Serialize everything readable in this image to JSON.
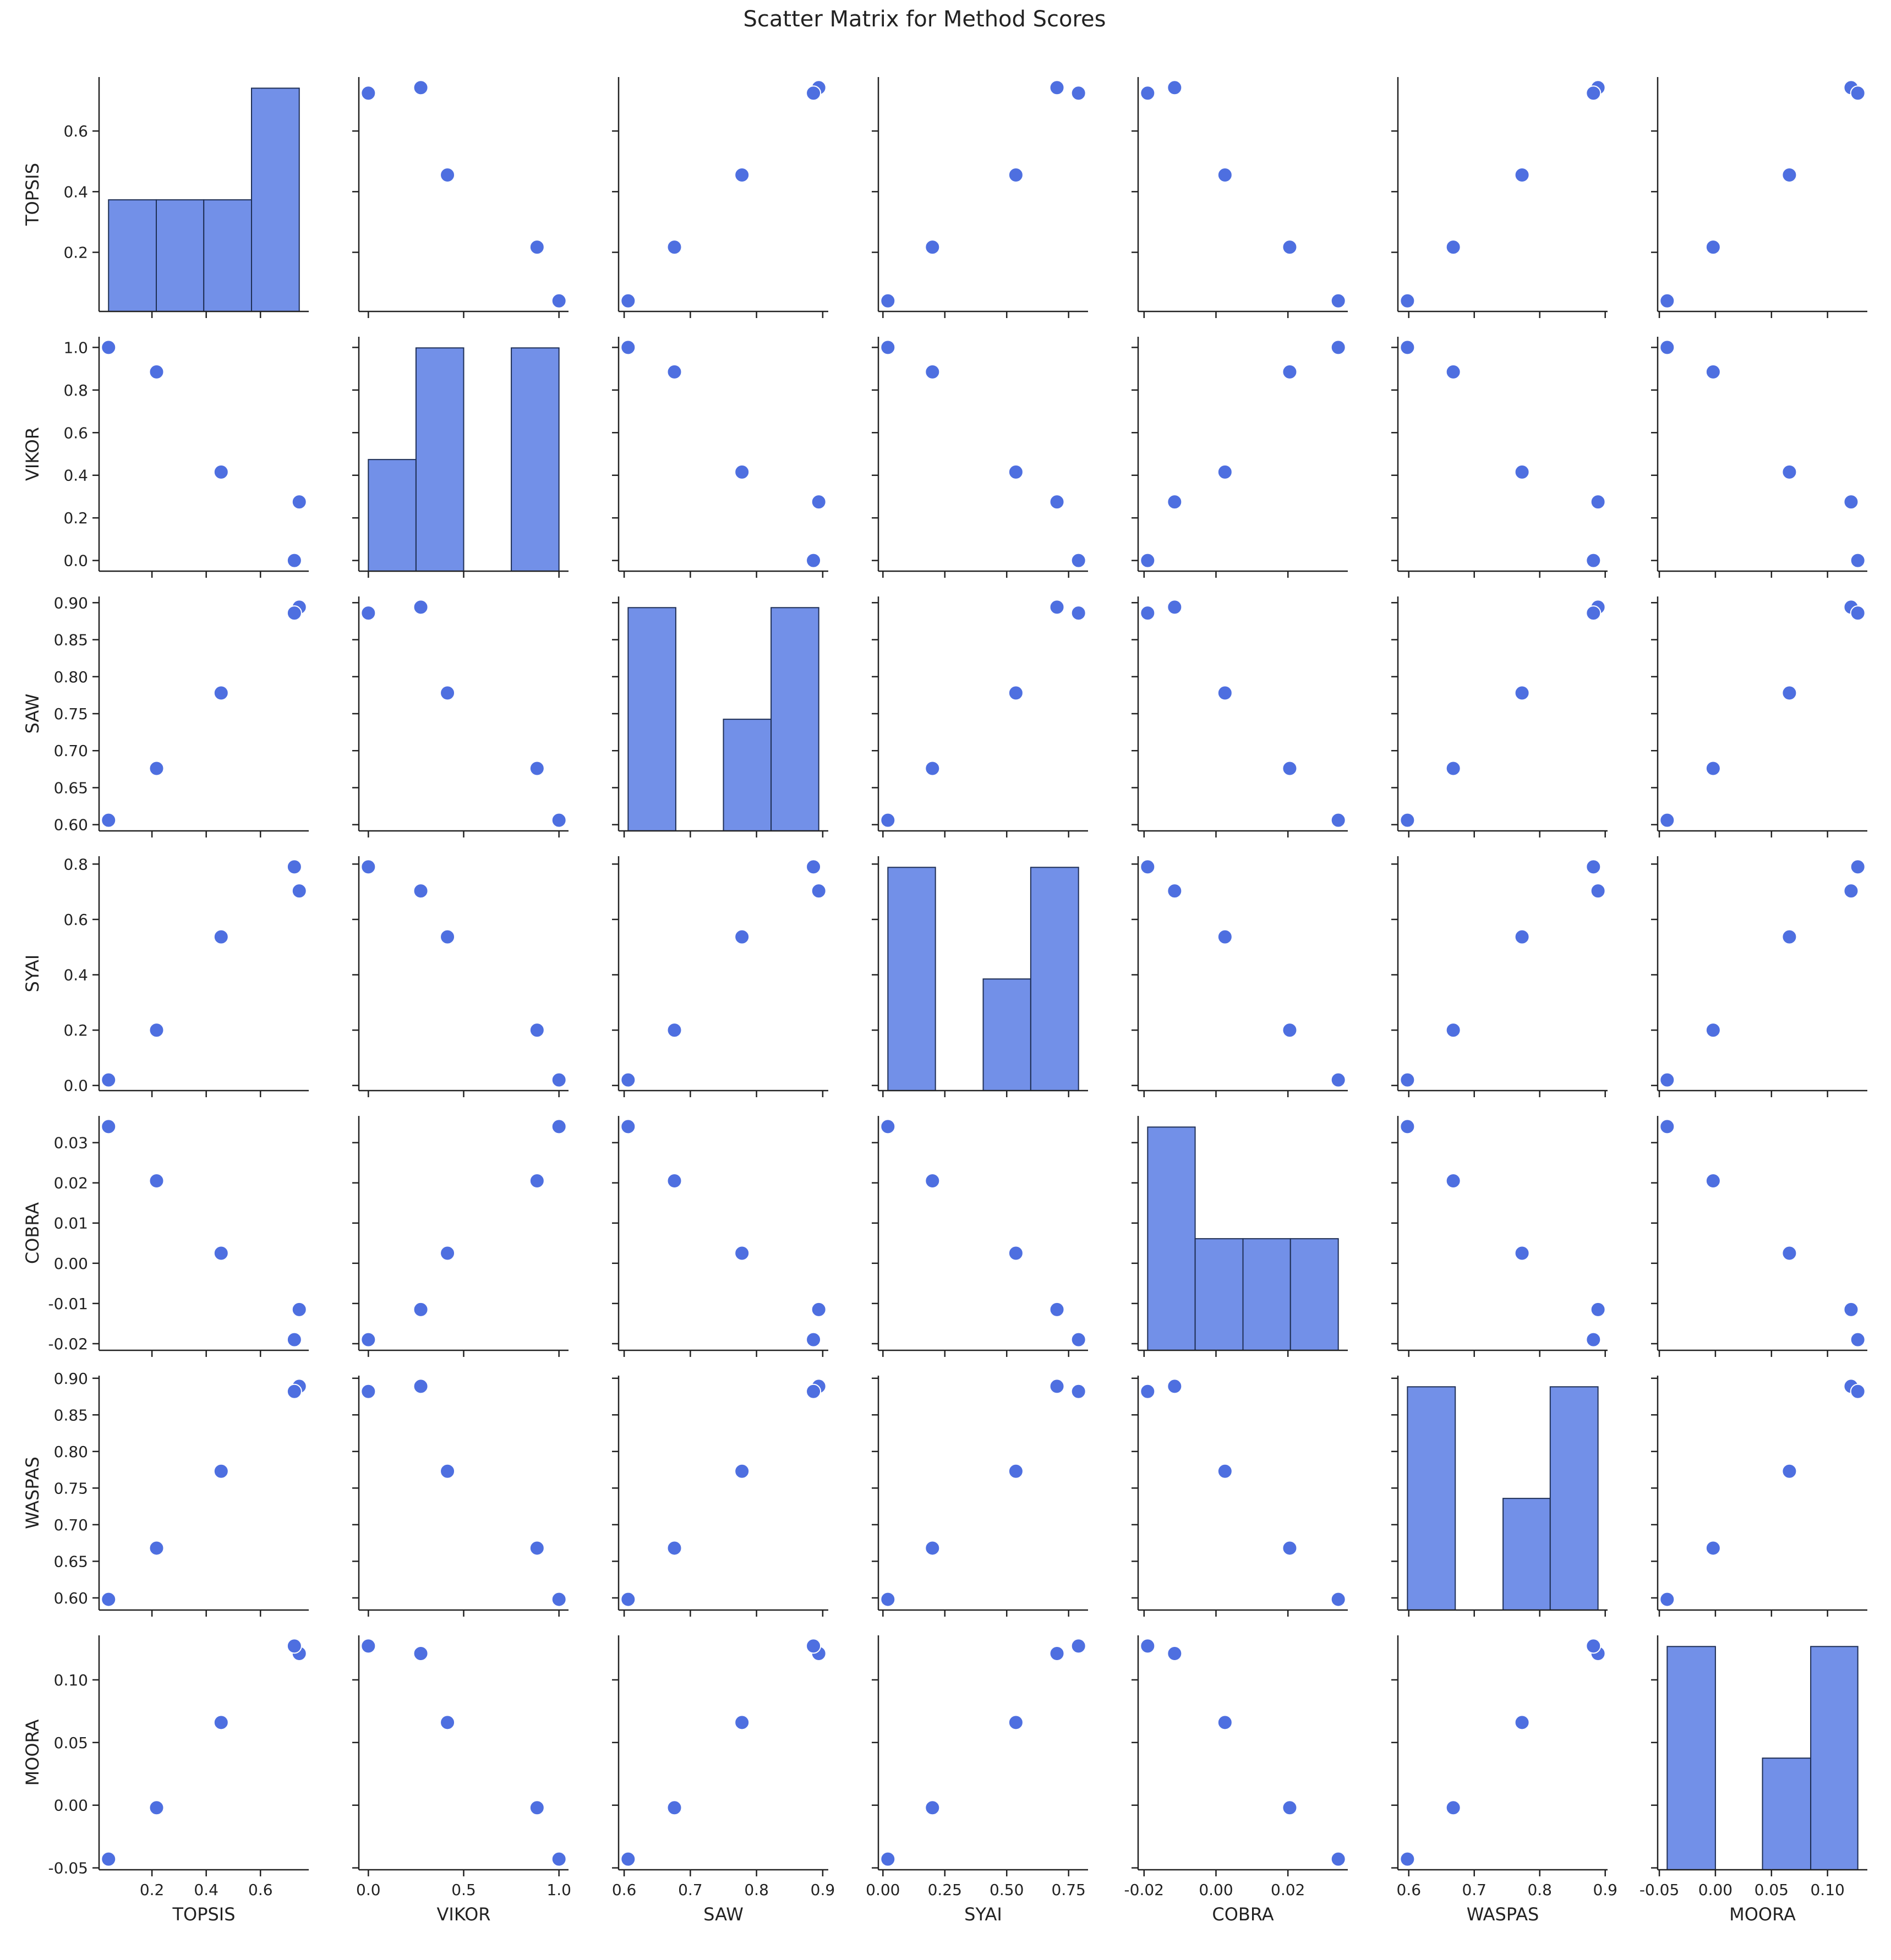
{
  "chart_data": {
    "type": "scatter",
    "title": "Scatter Matrix for Method Scores",
    "variables": [
      "TOPSIS",
      "VIKOR",
      "SAW",
      "SYAI",
      "COBRA",
      "WASPAS",
      "MOORA"
    ],
    "observations": [
      {
        "TOPSIS": 0.04,
        "VIKOR": 1.0,
        "SAW": 0.606,
        "SYAI": 0.02,
        "COBRA": 0.034,
        "WASPAS": 0.598,
        "MOORA": -0.043
      },
      {
        "TOPSIS": 0.217,
        "VIKOR": 0.885,
        "SAW": 0.676,
        "SYAI": 0.2,
        "COBRA": 0.0205,
        "WASPAS": 0.668,
        "MOORA": -0.002
      },
      {
        "TOPSIS": 0.455,
        "VIKOR": 0.415,
        "SAW": 0.778,
        "SYAI": 0.537,
        "COBRA": 0.0025,
        "WASPAS": 0.773,
        "MOORA": 0.066
      },
      {
        "TOPSIS": 0.743,
        "VIKOR": 0.275,
        "SAW": 0.894,
        "SYAI": 0.703,
        "COBRA": -0.0115,
        "WASPAS": 0.889,
        "MOORA": 0.121
      },
      {
        "TOPSIS": 0.725,
        "VIKOR": 0.0,
        "SAW": 0.886,
        "SYAI": 0.79,
        "COBRA": -0.019,
        "WASPAS": 0.882,
        "MOORA": 0.127
      }
    ],
    "axes": {
      "TOPSIS": {
        "ticks": [
          0.2,
          0.4,
          0.6
        ],
        "tick_labels": [
          "0.2",
          "0.4",
          "0.6"
        ],
        "lim": [
          0.005,
          0.778
        ]
      },
      "VIKOR": {
        "ticks": [
          0.0,
          0.2,
          0.4,
          0.6,
          0.8,
          1.0
        ],
        "tick_labels": [
          "0.0",
          "0.5",
          "1.0"
        ],
        "tick_values_x": [
          0.0,
          0.5,
          1.0
        ],
        "tick_labels_y": [
          "0.0",
          "0.2",
          "0.4",
          "0.6",
          "0.8",
          "1.0"
        ],
        "lim": [
          -0.05,
          1.05
        ]
      },
      "SAW": {
        "ticks_y": [
          0.6,
          0.65,
          0.7,
          0.75,
          0.8,
          0.85,
          0.9
        ],
        "tick_labels_y": [
          "0.60",
          "0.65",
          "0.70",
          "0.75",
          "0.80",
          "0.85",
          "0.90"
        ],
        "ticks_x": [
          0.6,
          0.7,
          0.8,
          0.9
        ],
        "tick_labels_x": [
          "0.6",
          "0.7",
          "0.8",
          "0.9"
        ],
        "lim": [
          0.5916,
          0.9084
        ]
      },
      "SYAI": {
        "ticks_y": [
          0.0,
          0.2,
          0.4,
          0.6,
          0.8
        ],
        "tick_labels_y": [
          "0.0",
          "0.2",
          "0.4",
          "0.6",
          "0.8"
        ],
        "ticks_x": [
          0.0,
          0.25,
          0.5,
          0.75
        ],
        "tick_labels_x": [
          "0.00",
          "0.25",
          "0.50",
          "0.75"
        ],
        "lim": [
          -0.0185,
          0.8285
        ]
      },
      "COBRA": {
        "ticks_y": [
          -0.02,
          -0.01,
          0.0,
          0.01,
          0.02,
          0.03
        ],
        "tick_labels_y": [
          "-0.02",
          "-0.01",
          "0.00",
          "0.01",
          "0.02",
          "0.03"
        ],
        "ticks_x": [
          -0.02,
          0.0,
          0.02
        ],
        "tick_labels_x": [
          "-0.02",
          "0.00",
          "0.02"
        ],
        "lim": [
          -0.02165,
          0.03665
        ]
      },
      "WASPAS": {
        "ticks_y": [
          0.6,
          0.65,
          0.7,
          0.75,
          0.8,
          0.85,
          0.9
        ],
        "tick_labels_y": [
          "0.60",
          "0.65",
          "0.70",
          "0.75",
          "0.80",
          "0.85",
          "0.90"
        ],
        "ticks_x": [
          0.6,
          0.7,
          0.8,
          0.9
        ],
        "tick_labels_x": [
          "0.6",
          "0.7",
          "0.8",
          "0.9"
        ],
        "lim": [
          0.5834,
          0.9036
        ]
      },
      "MOORA": {
        "ticks_y": [
          -0.05,
          0.0,
          0.05,
          0.1
        ],
        "tick_labels_y": [
          "-0.05",
          "0.00",
          "0.05",
          "0.10"
        ],
        "ticks_x": [
          -0.05,
          0.0,
          0.05,
          0.1
        ],
        "tick_labels_x": [
          "-0.05",
          "0.00",
          "0.05",
          "0.10"
        ],
        "lim": [
          -0.0515,
          0.1355
        ]
      }
    },
    "histograms": {
      "TOPSIS": {
        "edges": [
          0.04,
          0.216,
          0.391,
          0.567,
          0.743
        ],
        "counts": [
          1,
          1,
          1,
          2
        ],
        "ymax": 2
      },
      "VIKOR": {
        "edges": [
          0.0,
          0.25,
          0.5,
          0.75,
          1.0
        ],
        "counts": [
          1,
          2,
          0,
          2
        ],
        "ymax": 2
      },
      "SAW": {
        "edges": [
          0.606,
          0.678,
          0.75,
          0.822,
          0.894
        ],
        "counts": [
          2,
          0,
          1,
          2
        ],
        "ymax": 2
      },
      "SYAI": {
        "edges": [
          0.02,
          0.212,
          0.405,
          0.597,
          0.79
        ],
        "counts": [
          2,
          0,
          1,
          2
        ],
        "ymax": 2
      },
      "COBRA": {
        "edges": [
          -0.019,
          -0.0058,
          0.0075,
          0.0207,
          0.034
        ],
        "counts": [
          2,
          1,
          1,
          1
        ],
        "ymax": 2
      },
      "WASPAS": {
        "edges": [
          0.598,
          0.671,
          0.744,
          0.816,
          0.889
        ],
        "counts": [
          2,
          0,
          1,
          2
        ],
        "ymax": 2
      },
      "MOORA": {
        "edges": [
          -0.043,
          0.0,
          0.042,
          0.085,
          0.127
        ],
        "counts": [
          2,
          0,
          1,
          2
        ],
        "ymax": 2
      }
    },
    "colors": {
      "points": "#4e6fe0",
      "bars": "#7290e8",
      "bar_edge": "#1f2f55",
      "axis": "#222222",
      "text": "#222222"
    }
  }
}
